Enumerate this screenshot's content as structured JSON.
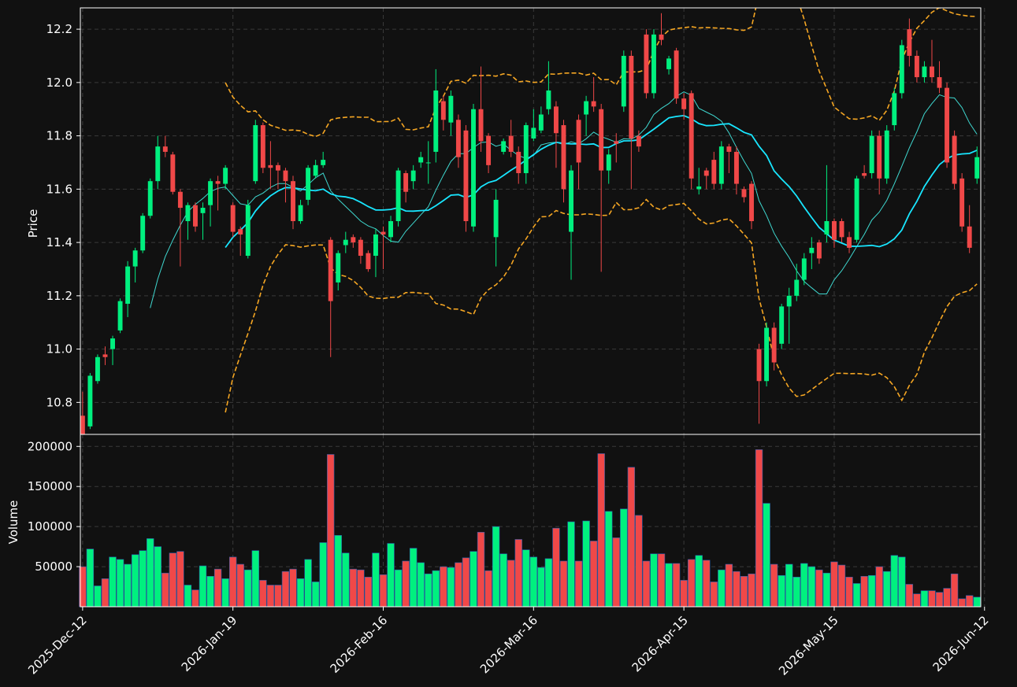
{
  "chart_data": {
    "type": "candlestick",
    "colors": {
      "background": "#111111",
      "up": "#00f07f",
      "down": "#f04848",
      "ma_fast": "#3fd8d0",
      "ma_slow": "#18e6ff",
      "bands": "#f5a623",
      "grid": "#3a3a3a",
      "frame": "#ffffff"
    },
    "price_panel": {
      "ylabel": "Price",
      "ylim": [
        10.68,
        12.28
      ],
      "yticks": [
        "10.8",
        "11.0",
        "11.2",
        "11.4",
        "11.6",
        "11.8",
        "12.0",
        "12.2"
      ],
      "grid": true
    },
    "volume_panel": {
      "ylabel": "Volume",
      "ylim": [
        0,
        215000
      ],
      "yticks": [
        "50000",
        "100000",
        "150000",
        "200000"
      ],
      "grid": true
    },
    "x_ticks": [
      {
        "index": 0,
        "label": "2025-Dec-12"
      },
      {
        "index": 20,
        "label": "2026-Jan-19"
      },
      {
        "index": 40,
        "label": "2026-Feb-16"
      },
      {
        "index": 60,
        "label": "2026-Mar-16"
      },
      {
        "index": 80,
        "label": "2026-Apr-15"
      },
      {
        "index": 100,
        "label": "2026-May-15"
      },
      {
        "index": 120,
        "label": "2026-Jun-12"
      }
    ],
    "candles": [
      [
        10.75,
        10.67,
        10.84,
        10.66,
        50000
      ],
      [
        10.71,
        10.9,
        10.91,
        10.7,
        72000
      ],
      [
        10.88,
        10.97,
        10.98,
        10.87,
        26000
      ],
      [
        10.98,
        10.97,
        11.01,
        10.94,
        35000
      ],
      [
        11.0,
        11.04,
        11.05,
        10.94,
        62000
      ],
      [
        11.07,
        11.18,
        11.19,
        11.06,
        59000
      ],
      [
        11.17,
        11.31,
        11.33,
        11.12,
        53000
      ],
      [
        11.31,
        11.37,
        11.38,
        11.25,
        65000
      ],
      [
        11.37,
        11.5,
        11.51,
        11.36,
        70000
      ],
      [
        11.5,
        11.63,
        11.64,
        11.49,
        85000
      ],
      [
        11.63,
        11.76,
        11.8,
        11.6,
        75000
      ],
      [
        11.76,
        11.74,
        11.8,
        11.72,
        42000
      ],
      [
        11.73,
        11.59,
        11.74,
        11.58,
        67000
      ],
      [
        11.59,
        11.53,
        11.6,
        11.31,
        69000
      ],
      [
        11.48,
        11.54,
        11.55,
        11.41,
        27000
      ],
      [
        11.54,
        11.46,
        11.55,
        11.44,
        21000
      ],
      [
        11.51,
        11.53,
        11.55,
        11.41,
        51000
      ],
      [
        11.54,
        11.63,
        11.64,
        11.46,
        38000
      ],
      [
        11.63,
        11.62,
        11.65,
        11.52,
        47000
      ],
      [
        11.62,
        11.68,
        11.69,
        11.6,
        35000
      ],
      [
        11.54,
        11.44,
        11.55,
        11.42,
        62000
      ],
      [
        11.45,
        11.43,
        11.46,
        11.35,
        53000
      ],
      [
        11.35,
        11.54,
        11.56,
        11.34,
        46000
      ],
      [
        11.63,
        11.84,
        11.86,
        11.62,
        70000
      ],
      [
        11.84,
        11.68,
        11.85,
        11.66,
        33000
      ],
      [
        11.69,
        11.68,
        11.78,
        11.6,
        27000
      ],
      [
        11.69,
        11.67,
        11.7,
        11.6,
        27000
      ],
      [
        11.67,
        11.63,
        11.68,
        11.55,
        44000
      ],
      [
        11.63,
        11.48,
        11.65,
        11.45,
        47000
      ],
      [
        11.48,
        11.54,
        11.56,
        11.47,
        35000
      ],
      [
        11.56,
        11.68,
        11.69,
        11.54,
        59000
      ],
      [
        11.65,
        11.69,
        11.71,
        11.64,
        31000
      ],
      [
        11.69,
        11.71,
        11.74,
        11.68,
        80000
      ],
      [
        11.41,
        11.18,
        11.42,
        10.97,
        190000
      ],
      [
        11.25,
        11.36,
        11.37,
        11.22,
        89000
      ],
      [
        11.39,
        11.41,
        11.44,
        11.36,
        67000
      ],
      [
        11.42,
        11.4,
        11.43,
        11.38,
        47000
      ],
      [
        11.41,
        11.35,
        11.42,
        11.32,
        46000
      ],
      [
        11.36,
        11.3,
        11.37,
        11.29,
        37000
      ],
      [
        11.35,
        11.43,
        11.45,
        11.27,
        67000
      ],
      [
        11.44,
        11.43,
        11.46,
        11.3,
        40000
      ],
      [
        11.42,
        11.48,
        11.5,
        11.4,
        79000
      ],
      [
        11.48,
        11.67,
        11.68,
        11.46,
        46000
      ],
      [
        11.66,
        11.59,
        11.67,
        11.55,
        57000
      ],
      [
        11.63,
        11.67,
        11.69,
        11.6,
        73000
      ],
      [
        11.7,
        11.72,
        11.74,
        11.68,
        55000
      ],
      [
        11.7,
        11.7,
        11.78,
        11.62,
        41000
      ],
      [
        11.74,
        11.97,
        12.05,
        11.7,
        45000
      ],
      [
        11.93,
        11.86,
        11.95,
        11.82,
        50000
      ],
      [
        11.85,
        11.95,
        11.97,
        11.8,
        49000
      ],
      [
        11.86,
        11.72,
        11.88,
        11.68,
        55000
      ],
      [
        11.82,
        11.48,
        11.84,
        11.44,
        61000
      ],
      [
        11.46,
        11.9,
        11.92,
        11.44,
        69000
      ],
      [
        11.9,
        11.78,
        12.06,
        11.74,
        93000
      ],
      [
        11.8,
        11.69,
        11.81,
        11.66,
        45000
      ],
      [
        11.42,
        11.56,
        11.6,
        11.31,
        100000
      ],
      [
        11.74,
        11.78,
        11.79,
        11.73,
        66000
      ],
      [
        11.8,
        11.74,
        11.86,
        11.72,
        58000
      ],
      [
        11.74,
        11.66,
        11.76,
        11.62,
        84000
      ],
      [
        11.66,
        11.84,
        11.85,
        11.62,
        71000
      ],
      [
        11.79,
        11.83,
        11.9,
        11.78,
        62000
      ],
      [
        11.82,
        11.88,
        11.91,
        11.81,
        49000
      ],
      [
        11.9,
        11.97,
        12.08,
        11.88,
        60000
      ],
      [
        11.91,
        11.81,
        11.93,
        11.68,
        98000
      ],
      [
        11.84,
        11.6,
        11.86,
        11.55,
        57000
      ],
      [
        11.44,
        11.67,
        11.69,
        11.26,
        106000
      ],
      [
        11.86,
        11.7,
        11.88,
        11.6,
        57000
      ],
      [
        11.88,
        11.93,
        11.95,
        11.8,
        107000
      ],
      [
        11.93,
        11.91,
        12.02,
        11.89,
        82000
      ],
      [
        11.9,
        11.67,
        11.92,
        11.29,
        191000
      ],
      [
        11.67,
        11.73,
        11.75,
        11.62,
        119000
      ],
      [
        11.78,
        11.77,
        11.81,
        11.7,
        86000
      ],
      [
        11.91,
        12.1,
        12.12,
        11.89,
        122000
      ],
      [
        12.1,
        11.79,
        12.12,
        11.6,
        174000
      ],
      [
        11.8,
        11.76,
        11.82,
        11.74,
        114000
      ],
      [
        12.18,
        11.96,
        12.2,
        11.94,
        57000
      ],
      [
        11.96,
        12.18,
        12.2,
        11.94,
        66000
      ],
      [
        12.18,
        12.16,
        12.26,
        12.14,
        66000
      ],
      [
        12.05,
        12.09,
        12.1,
        12.03,
        54000
      ],
      [
        12.12,
        11.94,
        12.13,
        11.92,
        54000
      ],
      [
        11.94,
        11.9,
        11.96,
        11.86,
        33000
      ],
      [
        11.96,
        11.64,
        11.97,
        11.6,
        59000
      ],
      [
        11.6,
        11.61,
        11.68,
        11.58,
        64000
      ],
      [
        11.67,
        11.65,
        11.68,
        11.6,
        58000
      ],
      [
        11.71,
        11.62,
        11.74,
        11.6,
        31000
      ],
      [
        11.62,
        11.76,
        11.78,
        11.6,
        46000
      ],
      [
        11.76,
        11.74,
        11.77,
        11.66,
        53000
      ],
      [
        11.74,
        11.62,
        11.76,
        11.58,
        44000
      ],
      [
        11.6,
        11.57,
        11.61,
        11.55,
        38000
      ],
      [
        11.62,
        11.48,
        11.63,
        11.45,
        41000
      ],
      [
        11.0,
        10.88,
        11.02,
        10.72,
        196000
      ],
      [
        10.88,
        11.08,
        11.1,
        10.86,
        129000
      ],
      [
        11.08,
        10.95,
        11.1,
        10.92,
        53000
      ],
      [
        11.02,
        11.16,
        11.17,
        11.0,
        39000
      ],
      [
        11.16,
        11.2,
        11.23,
        11.02,
        53000
      ],
      [
        11.2,
        11.26,
        11.32,
        11.18,
        37000
      ],
      [
        11.26,
        11.34,
        11.36,
        11.24,
        54000
      ],
      [
        11.36,
        11.38,
        11.42,
        11.3,
        50000
      ],
      [
        11.4,
        11.34,
        11.41,
        11.32,
        46000
      ],
      [
        11.43,
        11.48,
        11.69,
        11.4,
        42000
      ],
      [
        11.48,
        11.41,
        11.49,
        11.38,
        56000
      ],
      [
        11.48,
        11.42,
        11.49,
        11.4,
        52000
      ],
      [
        11.42,
        11.38,
        11.44,
        11.36,
        37000
      ],
      [
        11.41,
        11.64,
        11.65,
        11.4,
        29000
      ],
      [
        11.66,
        11.65,
        11.69,
        11.64,
        38000
      ],
      [
        11.66,
        11.8,
        11.82,
        11.64,
        39000
      ],
      [
        11.8,
        11.64,
        11.82,
        11.58,
        50000
      ],
      [
        11.64,
        11.82,
        11.84,
        11.62,
        44000
      ],
      [
        11.84,
        11.96,
        11.98,
        11.82,
        64000
      ],
      [
        11.96,
        12.14,
        12.16,
        11.94,
        62000
      ],
      [
        12.2,
        12.1,
        12.24,
        12.06,
        28000
      ],
      [
        12.1,
        12.02,
        12.12,
        12.0,
        16000
      ],
      [
        12.02,
        12.06,
        12.08,
        12.0,
        20000
      ],
      [
        12.06,
        12.02,
        12.16,
        12.0,
        20000
      ],
      [
        12.02,
        11.98,
        12.08,
        11.96,
        18000
      ],
      [
        11.98,
        11.7,
        12.0,
        11.68,
        23000
      ],
      [
        11.8,
        11.62,
        11.82,
        11.6,
        41000
      ],
      [
        11.64,
        11.46,
        11.66,
        11.44,
        10000
      ],
      [
        11.46,
        11.38,
        11.54,
        11.36,
        14000
      ],
      [
        11.64,
        11.72,
        11.76,
        11.62,
        12000
      ]
    ]
  }
}
